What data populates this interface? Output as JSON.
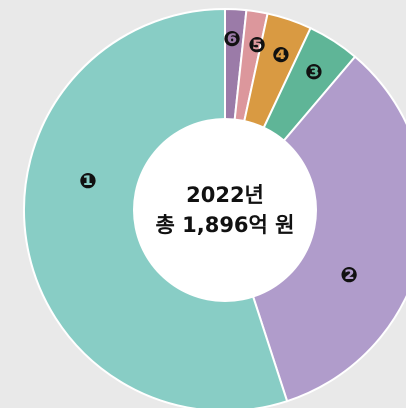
{
  "chart_data": {
    "type": "donut",
    "title": "2022년",
    "subtitle": "총 1,896억 원",
    "categories": [
      "❻",
      "❺",
      "❹",
      "❸",
      "❷",
      "❶"
    ],
    "values": [
      1.7,
      1.7,
      3.6,
      4.2,
      33.8,
      55
    ],
    "colors": [
      "#9b7ba8",
      "#dc979c",
      "#d99a42",
      "#5fb597",
      "#b09ccb",
      "#88cdc5"
    ]
  }
}
